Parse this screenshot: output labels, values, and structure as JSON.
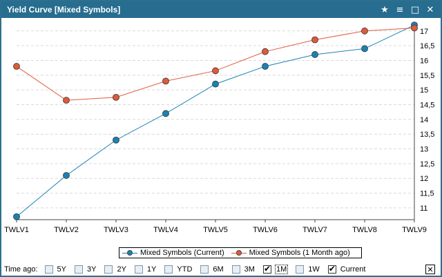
{
  "window": {
    "title": "Yield Curve [Mixed Symbols]"
  },
  "titlebar_icons": [
    "star-icon",
    "menu-icon",
    "maximize-icon",
    "close-icon"
  ],
  "titlebar_glyphs": [
    "★",
    "≡",
    "□",
    "✕"
  ],
  "chart_data": {
    "type": "line",
    "categories": [
      "TWLV1",
      "TWLV2",
      "TWLV3",
      "TWLV4",
      "TWLV5",
      "TWLV6",
      "TWLV7",
      "TWLV8",
      "TWLV9"
    ],
    "series": [
      {
        "name": "Mixed Symbols (Current)",
        "color": "#1a82b3",
        "values": [
          10.7,
          12.1,
          13.3,
          14.2,
          15.2,
          15.8,
          16.2,
          16.4,
          17.2
        ]
      },
      {
        "name": "Mixed Symbols (1 Month ago)",
        "color": "#e05a3a",
        "values": [
          15.8,
          14.65,
          14.75,
          15.3,
          15.65,
          16.3,
          16.7,
          17.0,
          17.1
        ]
      }
    ],
    "yticks": [
      "11",
      "11,5",
      "12",
      "12,5",
      "13",
      "13,5",
      "14",
      "14,5",
      "15",
      "15,5",
      "16",
      "16,5",
      "17"
    ],
    "ylim": [
      10.6,
      17.3
    ],
    "grid": true,
    "legend_position": "bottom"
  },
  "timebar": {
    "label": "Time ago:",
    "options": [
      {
        "label": "5Y",
        "checked": false
      },
      {
        "label": "3Y",
        "checked": false
      },
      {
        "label": "2Y",
        "checked": false
      },
      {
        "label": "1Y",
        "checked": false
      },
      {
        "label": "YTD",
        "checked": false
      },
      {
        "label": "6M",
        "checked": false
      },
      {
        "label": "3M",
        "checked": false
      },
      {
        "label": "1M",
        "checked": true,
        "focused": true
      },
      {
        "label": "1W",
        "checked": false
      },
      {
        "label": "Current",
        "checked": true
      }
    ],
    "close_glyph": "✕"
  }
}
